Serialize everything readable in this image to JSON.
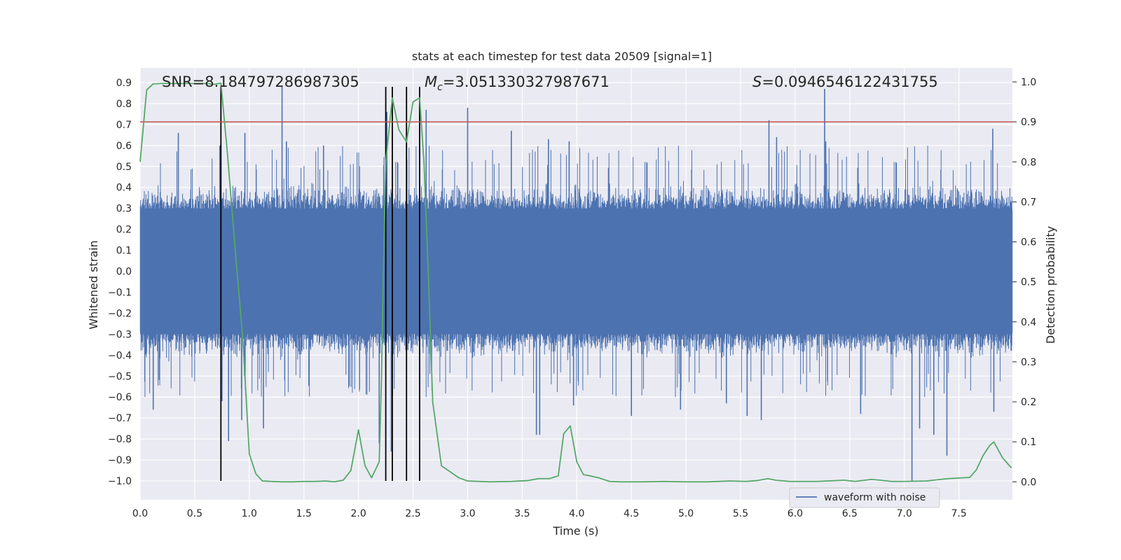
{
  "chart_data": {
    "type": "line",
    "title": "stats at each timestep for test data 20509 [signal=1]",
    "xlabel": "Time (s)",
    "ylabel": "Whitened strain",
    "ylabel_right": "Detection probability",
    "xlim": [
      0.0,
      7.99
    ],
    "ylim": [
      -1.09,
      0.97
    ],
    "ylim_right": [
      -0.045,
      1.035
    ],
    "x_ticks": [
      0.0,
      0.5,
      1.0,
      1.5,
      2.0,
      2.5,
      3.0,
      3.5,
      4.0,
      4.5,
      5.0,
      5.5,
      6.0,
      6.5,
      7.0,
      7.5
    ],
    "x_tick_labels": [
      "0.0",
      "0.5",
      "1.0",
      "1.5",
      "2.0",
      "2.5",
      "3.0",
      "3.5",
      "4.0",
      "4.5",
      "5.0",
      "5.5",
      "6.0",
      "6.5",
      "7.0",
      "7.5"
    ],
    "y_ticks": [
      0.9,
      0.8,
      0.7,
      0.6,
      0.5,
      0.4,
      0.3,
      0.2,
      0.1,
      0.0,
      -0.1,
      -0.2,
      -0.3,
      -0.4,
      -0.5,
      -0.6,
      -0.7,
      -0.8,
      -0.9,
      -1.0
    ],
    "y_tick_labels": [
      "0.9",
      "0.8",
      "0.7",
      "0.6",
      "0.5",
      "0.4",
      "0.3",
      "0.2",
      "0.1",
      "0.0",
      "−0.1",
      "−0.2",
      "−0.3",
      "−0.4",
      "−0.5",
      "−0.6",
      "−0.7",
      "−0.8",
      "−0.9",
      "−1.0"
    ],
    "y_ticks_right": [
      1.0,
      0.9,
      0.8,
      0.7,
      0.6,
      0.5,
      0.4,
      0.3,
      0.2,
      0.1,
      0.0
    ],
    "y_tick_labels_right": [
      "1.0",
      "0.9",
      "0.8",
      "0.7",
      "0.6",
      "0.5",
      "0.4",
      "0.3",
      "0.2",
      "0.1",
      "0.0"
    ],
    "stats": {
      "snr": "SNR=8.184797286987305",
      "mc_symbol": "M",
      "mc_subscript": "c",
      "mc_value": "=3.051330327987671",
      "s_symbol": "S",
      "s_value": "=0.0946546122431755"
    },
    "threshold": {
      "value": 0.9,
      "axis": "right",
      "color": "#c44e52"
    },
    "vertical_markers": {
      "x": [
        0.74,
        2.25,
        2.31,
        2.44,
        2.56
      ],
      "y_from": -1.0,
      "y_to": 0.88,
      "color": "#000000"
    },
    "legend": {
      "label": "waveform with noise",
      "placement": "lower-right"
    },
    "series": [
      {
        "name": "waveform with noise",
        "color": "#4c72b0",
        "description_bands": "dense noise; core band approx ±0.3, typical peaks to ±0.55",
        "spikes": [
          [
            0.12,
            -0.66
          ],
          [
            0.35,
            0.66
          ],
          [
            0.73,
            0.6
          ],
          [
            0.75,
            -0.62
          ],
          [
            0.81,
            -0.81
          ],
          [
            0.93,
            -0.71
          ],
          [
            0.96,
            0.66
          ],
          [
            1.13,
            -0.75
          ],
          [
            1.3,
            0.88
          ],
          [
            1.34,
            0.62
          ],
          [
            1.68,
            0.6
          ],
          [
            2.19,
            -0.82
          ],
          [
            2.3,
            -0.86
          ],
          [
            2.26,
            0.76
          ],
          [
            2.56,
            0.74
          ],
          [
            2.62,
            0.77
          ],
          [
            3.0,
            0.78
          ],
          [
            3.4,
            0.67
          ],
          [
            3.63,
            -0.78
          ],
          [
            3.66,
            -0.78
          ],
          [
            3.74,
            0.63
          ],
          [
            3.93,
            0.62
          ],
          [
            3.97,
            -0.64
          ],
          [
            4.5,
            -0.69
          ],
          [
            4.95,
            -0.66
          ],
          [
            5.37,
            -0.63
          ],
          [
            5.56,
            -0.69
          ],
          [
            5.69,
            -0.71
          ],
          [
            5.76,
            0.72
          ],
          [
            5.83,
            0.64
          ],
          [
            6.27,
            0.87
          ],
          [
            6.28,
            0.62
          ],
          [
            6.6,
            -0.68
          ],
          [
            7.07,
            -1.0
          ],
          [
            7.14,
            -0.75
          ],
          [
            7.27,
            -0.78
          ],
          [
            7.39,
            -0.88
          ],
          [
            7.82,
            -0.67
          ],
          [
            7.81,
            0.68
          ]
        ]
      },
      {
        "name": "detection probability",
        "axis": "right",
        "color": "#55a868",
        "x": [
          0.0,
          0.06,
          0.12,
          0.2,
          0.3,
          0.4,
          0.5,
          0.6,
          0.68,
          0.74,
          0.8,
          0.88,
          0.94,
          1.0,
          1.06,
          1.12,
          1.2,
          1.3,
          1.4,
          1.5,
          1.6,
          1.7,
          1.78,
          1.86,
          1.93,
          2.0,
          2.06,
          2.12,
          2.19,
          2.21,
          2.23,
          2.25,
          2.31,
          2.37,
          2.44,
          2.5,
          2.56,
          2.6,
          2.64,
          2.68,
          2.76,
          2.84,
          2.92,
          3.0,
          3.2,
          3.4,
          3.55,
          3.65,
          3.75,
          3.83,
          3.88,
          3.94,
          4.0,
          4.06,
          4.12,
          4.2,
          4.3,
          4.4,
          4.6,
          4.8,
          5.0,
          5.2,
          5.4,
          5.55,
          5.65,
          5.75,
          5.82,
          5.95,
          6.2,
          6.45,
          6.55,
          6.7,
          6.78,
          6.88,
          7.0,
          7.2,
          7.4,
          7.6,
          7.66,
          7.72,
          7.78,
          7.82,
          7.9,
          7.98
        ],
        "values": [
          0.8,
          0.98,
          0.995,
          0.996,
          0.996,
          0.996,
          0.996,
          0.996,
          0.994,
          0.997,
          0.82,
          0.55,
          0.36,
          0.07,
          0.02,
          0.002,
          0.001,
          0.0,
          0.0,
          0.001,
          0.001,
          0.002,
          0.0,
          0.004,
          0.028,
          0.13,
          0.04,
          0.01,
          0.05,
          0.25,
          0.55,
          0.8,
          0.96,
          0.88,
          0.85,
          0.95,
          0.96,
          0.8,
          0.52,
          0.2,
          0.04,
          0.025,
          0.01,
          0.002,
          0.0,
          0.001,
          0.003,
          0.008,
          0.008,
          0.015,
          0.12,
          0.14,
          0.05,
          0.018,
          0.015,
          0.01,
          0.001,
          0.0,
          0.0,
          0.001,
          0.0,
          0.0,
          0.002,
          0.001,
          0.003,
          0.008,
          0.004,
          0.001,
          0.001,
          0.004,
          0.001,
          0.006,
          0.004,
          0.001,
          0.001,
          0.002,
          0.008,
          0.011,
          0.03,
          0.065,
          0.09,
          0.1,
          0.06,
          0.035
        ]
      }
    ]
  }
}
